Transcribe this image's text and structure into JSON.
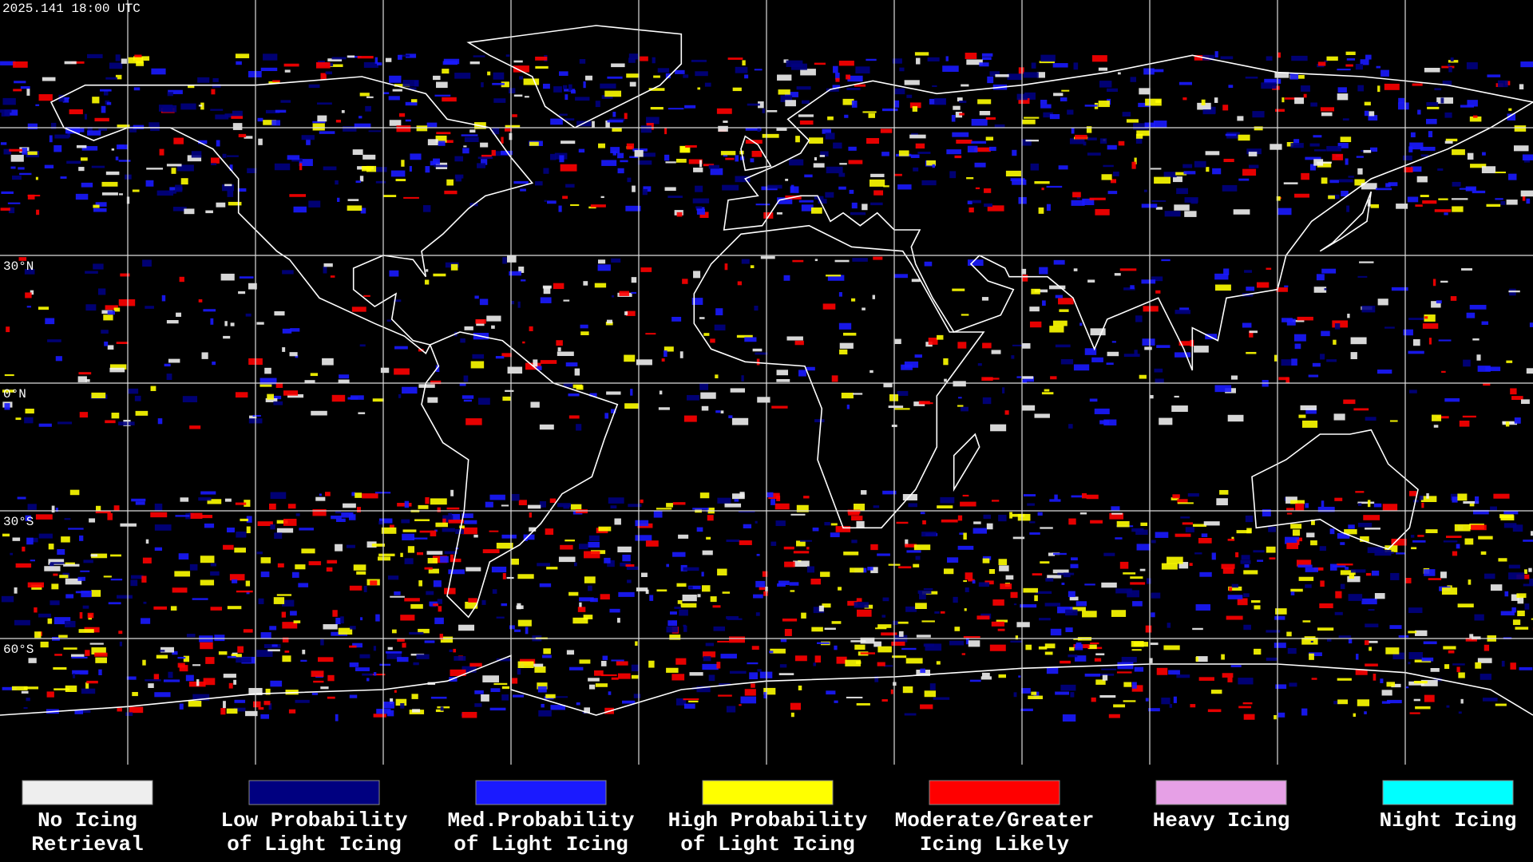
{
  "header": {
    "timestamp": "2025.141 18:00 UTC"
  },
  "map": {
    "latitude_labels": [
      "30°N",
      "0°N",
      "30°S",
      "60°S"
    ]
  },
  "legend": {
    "items": [
      {
        "color": "#eeeeee",
        "label_lines": [
          "No Icing",
          "Retrieval"
        ]
      },
      {
        "color": "#000080",
        "label_lines": [
          "Low Probability",
          "of Light Icing"
        ]
      },
      {
        "color": "#1a1aff",
        "label_lines": [
          "Med.Probability",
          "of Light Icing"
        ]
      },
      {
        "color": "#ffff00",
        "label_lines": [
          "High Probability",
          "of Light Icing"
        ]
      },
      {
        "color": "#ff0000",
        "label_lines": [
          "Moderate/Greater",
          "Icing Likely"
        ]
      },
      {
        "color": "#e6a0e6",
        "label_lines": [
          "Heavy Icing"
        ]
      },
      {
        "color": "#00ffff",
        "label_lines": [
          "Night Icing"
        ]
      }
    ]
  }
}
